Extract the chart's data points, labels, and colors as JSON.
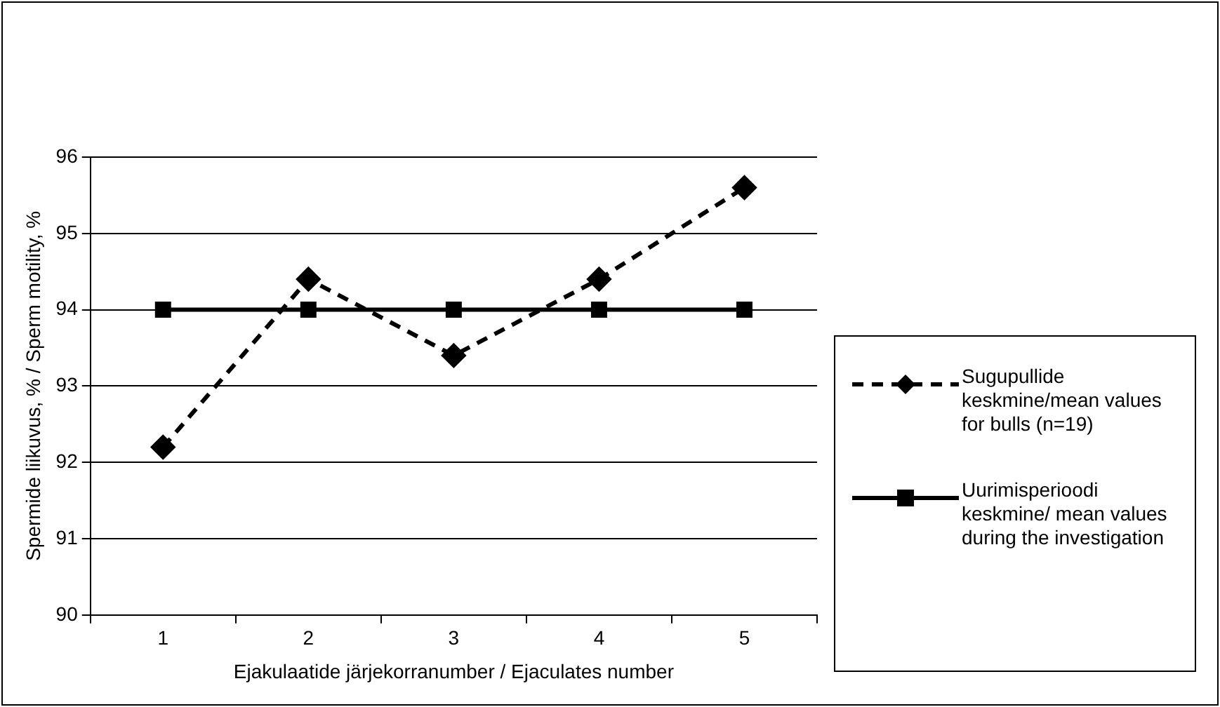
{
  "chart_data": {
    "type": "line",
    "xlabel": "Ejakulaatide järjekorranumber / Ejaculates number",
    "ylabel": "Spermide liikuvus, % / Sperm motility, %",
    "categories": [
      "1",
      "2",
      "3",
      "4",
      "5"
    ],
    "series": [
      {
        "name": "Sugupullide keskmine/mean values for bulls (n=19)",
        "color": "#000000",
        "values": [
          92.2,
          94.4,
          93.4,
          94.4,
          95.6
        ],
        "marker": "diamond",
        "line_style": "dashed"
      },
      {
        "name": "Uurimisperioodi keskmine/ mean values during the investigation",
        "color": "#000000",
        "values": [
          94,
          94,
          94,
          94,
          94
        ],
        "marker": "square",
        "line_style": "solid"
      }
    ],
    "ylim": [
      90,
      96
    ],
    "yticks": [
      90,
      91,
      92,
      93,
      94,
      95,
      96
    ],
    "grid": "y",
    "legend": "right"
  }
}
